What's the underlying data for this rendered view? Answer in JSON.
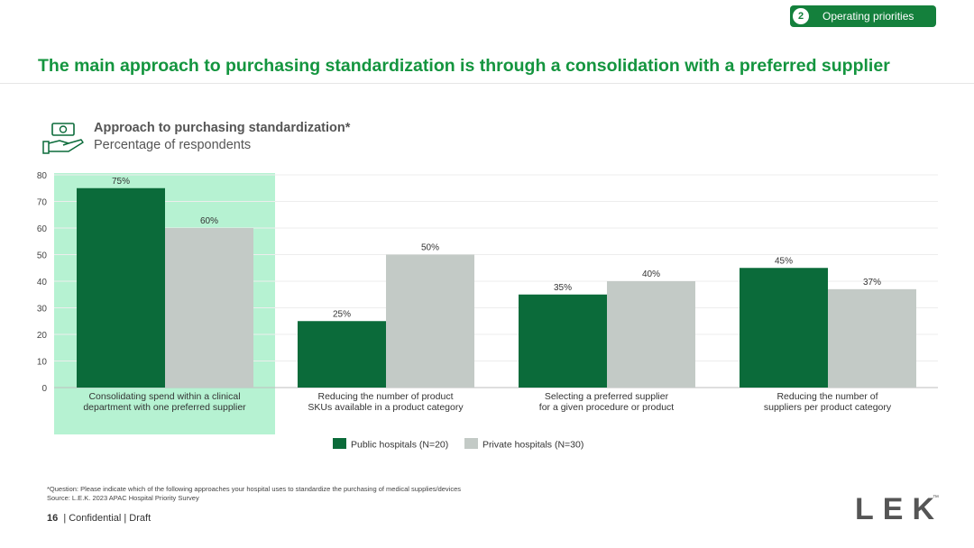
{
  "header": {
    "section_number": "2",
    "section_label": "Operating priorities",
    "title": "The main approach to purchasing standardization is through a consolidation with a preferred supplier"
  },
  "chart_header": {
    "icon": "money-hand-icon",
    "title": "Approach to purchasing standardization*",
    "subtitle": "Percentage of respondents"
  },
  "colors": {
    "public": "#0b6b3a",
    "private": "#c3cac6",
    "highlight": "#b6f2d2",
    "title": "#14953f"
  },
  "chart_data": {
    "type": "bar",
    "title": "Approach to purchasing standardization*",
    "ylabel": "Percentage of respondents",
    "ylim": [
      0,
      80
    ],
    "yticks": [
      0,
      10,
      20,
      30,
      40,
      50,
      60,
      70,
      80
    ],
    "grid": true,
    "highlighted_category": 0,
    "categories": [
      [
        "Consolidating spend within a clinical",
        "department with one preferred supplier"
      ],
      [
        "Reducing the number of product",
        "SKUs available in a product category"
      ],
      [
        "Selecting a preferred supplier",
        "for a given procedure or product"
      ],
      [
        "Reducing the number of",
        "suppliers per product category"
      ]
    ],
    "series": [
      {
        "name": "Public hospitals (N=20)",
        "values": [
          75,
          25,
          35,
          45
        ],
        "labels": [
          "75%",
          "25%",
          "35%",
          "45%"
        ]
      },
      {
        "name": "Private hospitals (N=30)",
        "values": [
          60,
          50,
          40,
          37
        ],
        "labels": [
          "60%",
          "50%",
          "40%",
          "37%"
        ]
      }
    ],
    "legend_position": "bottom-center"
  },
  "footer": {
    "footnote": "*Question: Please indicate which of the following approaches your hospital uses to standardize the purchasing of medical supplies/devices",
    "source": "Source:  L.E.K. 2023 APAC Hospital Priority Survey",
    "page_number": "16",
    "page_label": "| Confidential | Draft",
    "logo_text": "LEK",
    "logo_tm": "™"
  }
}
